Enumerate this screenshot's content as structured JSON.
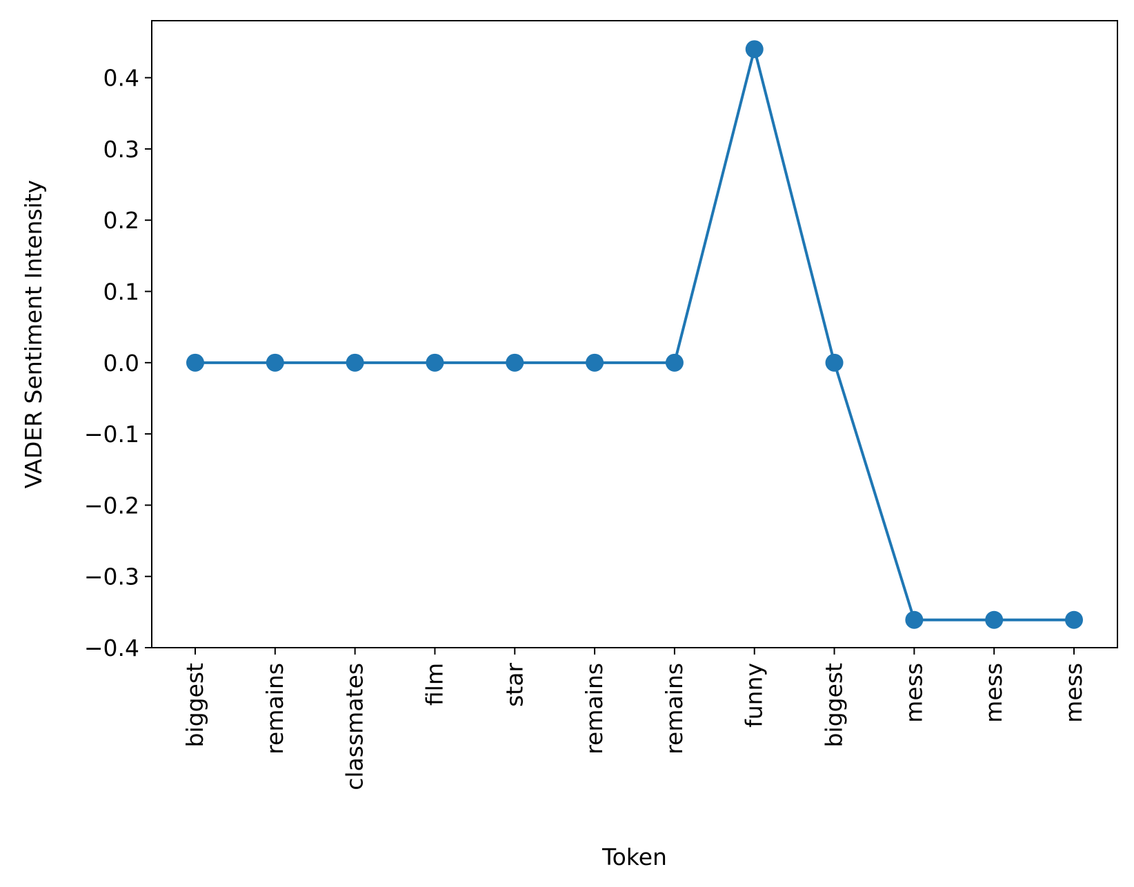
{
  "chart_data": {
    "type": "line",
    "title": "",
    "xlabel": "Token",
    "ylabel": "VADER Sentiment Intensity",
    "categories": [
      "biggest",
      "remains",
      "classmates",
      "film",
      "star",
      "remains",
      "remains",
      "funny",
      "biggest",
      "mess",
      "mess",
      "mess"
    ],
    "series": [
      {
        "values": [
          0,
          0,
          0,
          0,
          0,
          0,
          0,
          0.44,
          0,
          -0.361,
          -0.361,
          -0.361
        ],
        "color": "#1f77b4",
        "marker": "circle"
      }
    ],
    "ylim": [
      -0.4,
      0.48
    ],
    "yticks": [
      -0.4,
      -0.3,
      -0.2,
      -0.1,
      0.0,
      0.1,
      0.2,
      0.3,
      0.4
    ],
    "ytick_labels": [
      "−0.4",
      "−0.3",
      "−0.2",
      "−0.1",
      "0.0",
      "0.1",
      "0.2",
      "0.3",
      "0.4"
    ],
    "grid": false,
    "legend": "none"
  }
}
